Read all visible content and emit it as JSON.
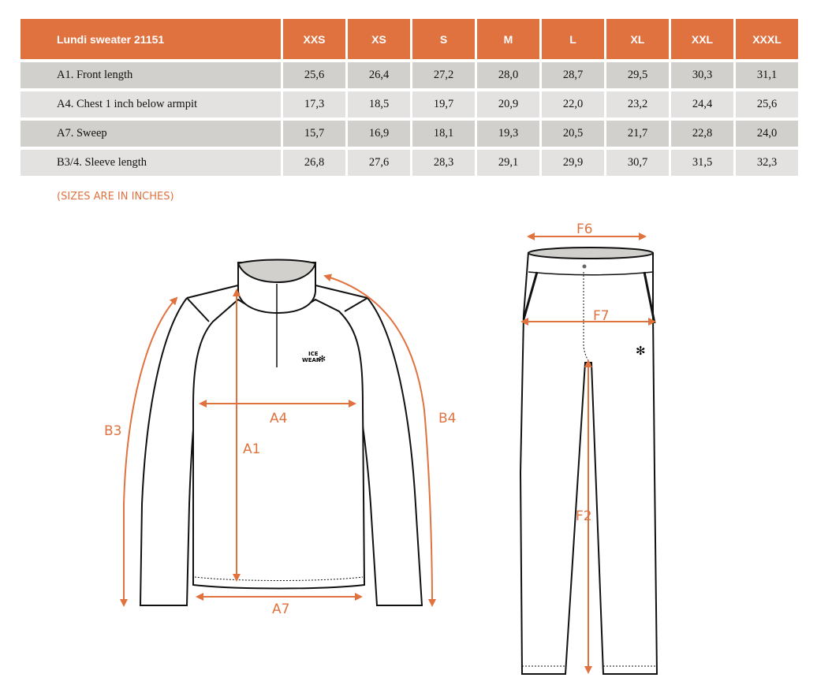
{
  "table": {
    "title": "Lundi sweater 21151",
    "sizes": [
      "XXS",
      "XS",
      "S",
      "M",
      "L",
      "XL",
      "XXL",
      "XXXL"
    ],
    "rows": [
      {
        "label": "A1. Front length",
        "values": [
          "25,6",
          "26,4",
          "27,2",
          "28,0",
          "28,7",
          "29,5",
          "30,3",
          "31,1"
        ]
      },
      {
        "label": "A4. Chest 1 inch below armpit",
        "values": [
          "17,3",
          "18,5",
          "19,7",
          "20,9",
          "22,0",
          "23,2",
          "24,4",
          "25,6"
        ]
      },
      {
        "label": "A7. Sweep",
        "values": [
          "15,7",
          "16,9",
          "18,1",
          "19,3",
          "20,5",
          "21,7",
          "22,8",
          "24,0"
        ]
      },
      {
        "label": "B3/4. Sleeve length",
        "values": [
          "26,8",
          "27,6",
          "28,3",
          "29,1",
          "29,9",
          "30,7",
          "31,5",
          "32,3"
        ]
      }
    ]
  },
  "note": "(SIZES ARE IN INCHES)",
  "diagram": {
    "sweater_labels": {
      "a1": "A1",
      "a4": "A4",
      "a7": "A7",
      "b3": "B3",
      "b4": "B4"
    },
    "pants_labels": {
      "f6": "F6",
      "f7": "F7",
      "f2": "F2"
    },
    "logo": "ICE WEAR"
  },
  "colors": {
    "accent": "#E07240",
    "row_dark": "#D1D0CC",
    "row_light": "#E3E2E0"
  }
}
